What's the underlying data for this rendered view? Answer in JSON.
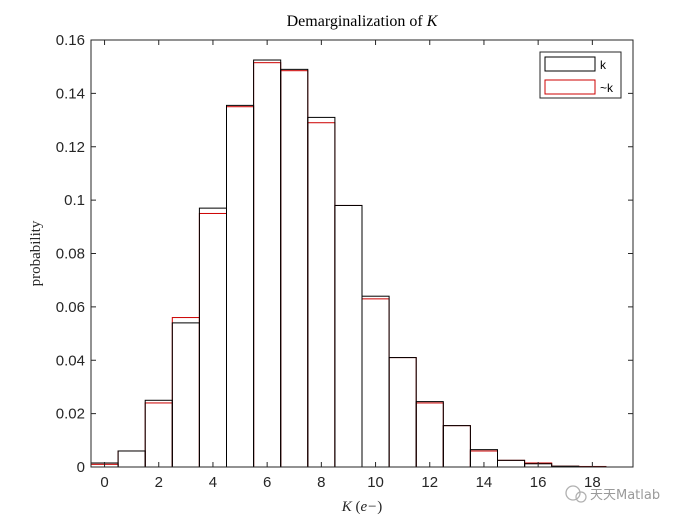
{
  "chart_data": {
    "type": "bar",
    "title": "Demarginalization of K",
    "title_prefix": "Demarginalization of ",
    "title_var": "K",
    "xlabel": "K (e−)",
    "xlabel_parts": [
      "K",
      "(",
      "e−",
      ")"
    ],
    "ylabel": "probability",
    "xlim": [
      -0.5,
      19.5
    ],
    "ylim": [
      0,
      0.16
    ],
    "xticks": [
      0,
      2,
      4,
      6,
      8,
      10,
      12,
      14,
      16,
      18
    ],
    "yticks": [
      0,
      0.02,
      0.04,
      0.06,
      0.08,
      0.1,
      0.12,
      0.14,
      0.16
    ],
    "ytick_labels": [
      "0",
      "0.02",
      "0.04",
      "0.06",
      "0.08",
      "0.1",
      "0.12",
      "0.14",
      "0.16"
    ],
    "bin_width": 1,
    "grid": false,
    "legend_position": "top-right",
    "series": [
      {
        "name": "k",
        "color": "#000000",
        "x": [
          0,
          1,
          2,
          3,
          4,
          5,
          6,
          7,
          8,
          9,
          10,
          11,
          12,
          13,
          14,
          15,
          16,
          17,
          18
        ],
        "values": [
          0.0015,
          0.006,
          0.025,
          0.054,
          0.097,
          0.1355,
          0.1525,
          0.149,
          0.131,
          0.098,
          0.064,
          0.041,
          0.0245,
          0.0155,
          0.0065,
          0.0025,
          0.0012,
          0.0003,
          0.0001
        ]
      },
      {
        "name": "~k",
        "color": "#cc0000",
        "x": [
          0,
          1,
          2,
          3,
          4,
          5,
          6,
          7,
          8,
          9,
          10,
          11,
          12,
          13,
          14,
          15,
          16,
          17,
          18
        ],
        "values": [
          0.001,
          0.006,
          0.024,
          0.056,
          0.095,
          0.135,
          0.1515,
          0.1485,
          0.129,
          0.098,
          0.063,
          0.041,
          0.024,
          0.0155,
          0.006,
          0.0025,
          0.0015,
          0.0003,
          0.0002
        ]
      }
    ]
  },
  "watermark": {
    "text": "天天Matlab"
  }
}
